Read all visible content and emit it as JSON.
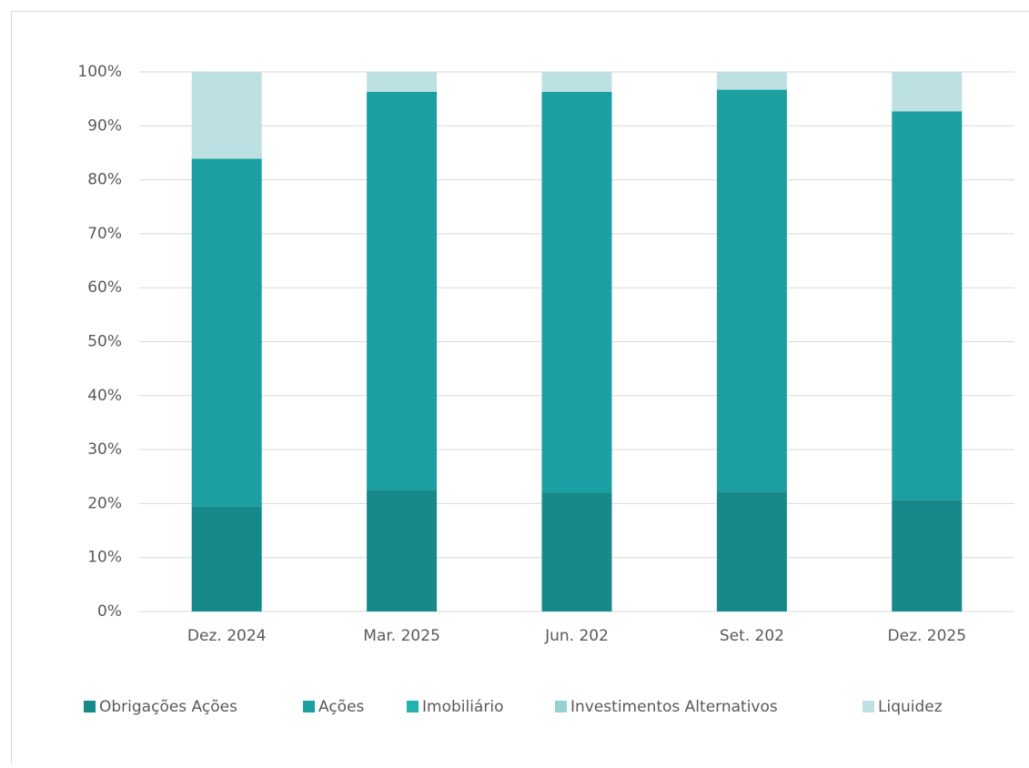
{
  "chart_data": {
    "type": "stacked-bar",
    "categories": [
      "Dez. 2024",
      "Mar. 2025",
      "Jun. 202",
      "Set. 202",
      "Dez. 2025"
    ],
    "series": [
      {
        "name": "Obrigações Ações",
        "color": "#17898a",
        "values": [
          19.5,
          22.5,
          22,
          22.2,
          20.7
        ]
      },
      {
        "name": "Ações",
        "color": "#1c9fa2",
        "values": [
          64.4,
          73.8,
          74.3,
          74.5,
          72
        ]
      },
      {
        "name": "Imobiliário",
        "color": "#22b3ae",
        "values": [
          0,
          0,
          0,
          0,
          0
        ]
      },
      {
        "name": "Investimentos Alternativos",
        "color": "#94d3d0",
        "values": [
          0,
          0,
          0,
          0,
          0
        ]
      },
      {
        "name": "Liquidez",
        "color": "#bde1e2",
        "values": [
          16.1,
          3.7,
          3.7,
          3.3,
          7.3
        ]
      }
    ],
    "ylim": [
      0,
      100
    ],
    "yticks": [
      {
        "value": 0,
        "label": "0%"
      },
      {
        "value": 10,
        "label": "10%"
      },
      {
        "value": 20,
        "label": "20%"
      },
      {
        "value": 30,
        "label": "30%"
      },
      {
        "value": 40,
        "label": "40%"
      },
      {
        "value": 50,
        "label": "50%"
      },
      {
        "value": 60,
        "label": "60%"
      },
      {
        "value": 70,
        "label": "70%"
      },
      {
        "value": 80,
        "label": "80%"
      },
      {
        "value": 90,
        "label": "90%"
      },
      {
        "value": 100,
        "label": "100%"
      }
    ],
    "grid": true
  }
}
